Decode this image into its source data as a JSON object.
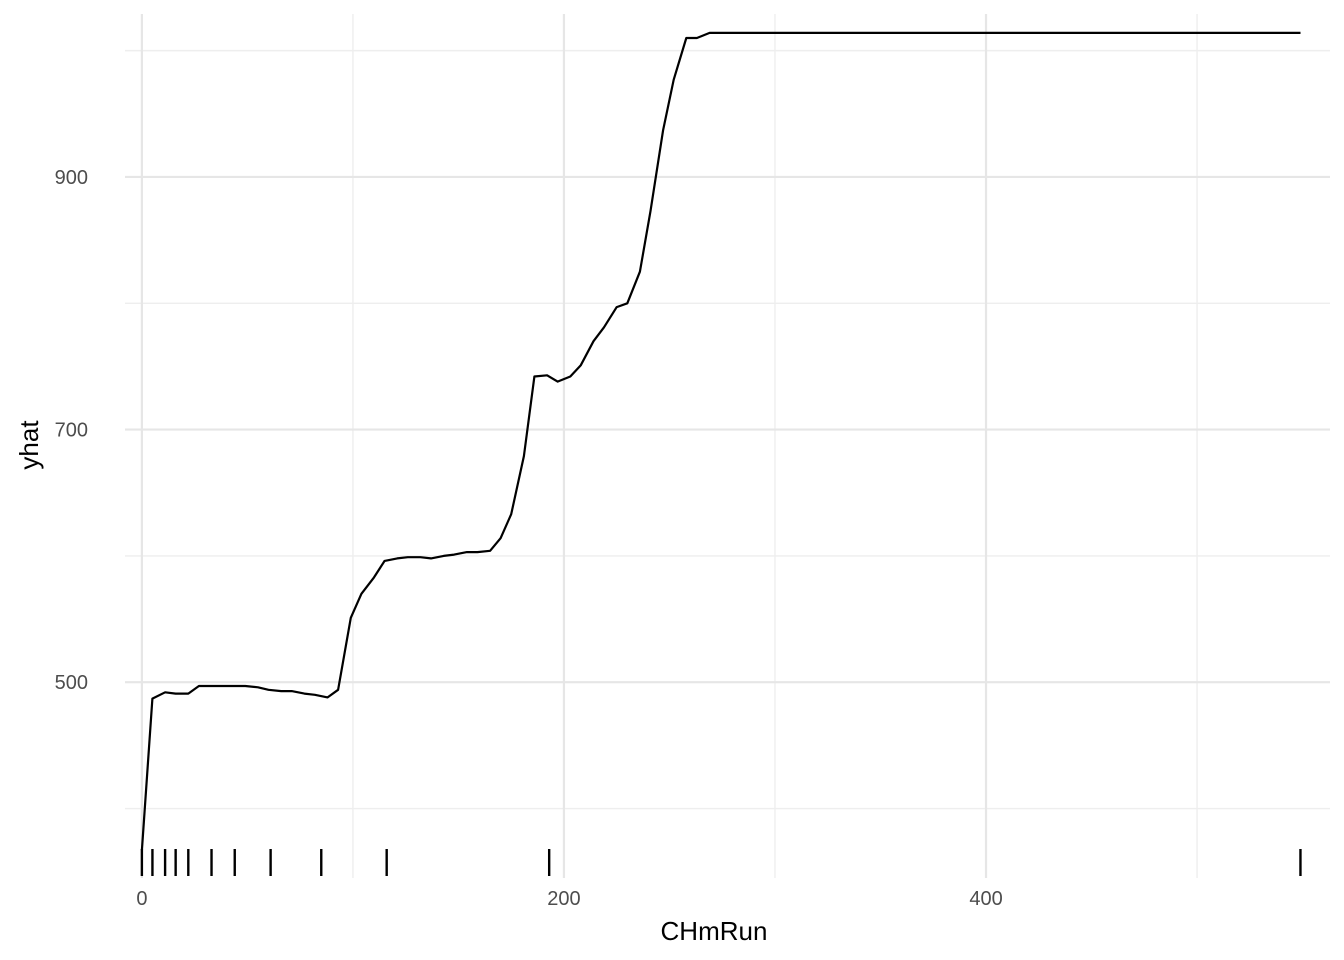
{
  "chart_data": {
    "type": "line",
    "title": "",
    "xlabel": "CHmRun",
    "ylabel": "yhat",
    "xlim": [
      -8,
      563
    ],
    "ylim": [
      345,
      1029
    ],
    "x_ticks": [
      0,
      200,
      400
    ],
    "x_minor_ticks": [
      100,
      300,
      500
    ],
    "y_ticks": [
      500,
      700,
      900
    ],
    "y_minor_ticks": [
      400,
      600,
      800,
      1000
    ],
    "grid": true,
    "series": [
      {
        "x": [
          0,
          5,
          11,
          16,
          22,
          27,
          33,
          38,
          44,
          49,
          55,
          60,
          66,
          71,
          77,
          82,
          88,
          93,
          99,
          104,
          110,
          115,
          121,
          126,
          132,
          137,
          143,
          148,
          154,
          159,
          165,
          170,
          175,
          181,
          186,
          192,
          197,
          203,
          208,
          214,
          219,
          225,
          230,
          236,
          241,
          247,
          252,
          258,
          263,
          269,
          274,
          280,
          300,
          400,
          500,
          549
        ],
        "y": [
          367,
          487,
          492,
          491,
          491,
          497,
          497,
          497,
          497,
          497,
          496,
          494,
          493,
          493,
          491,
          490,
          488,
          494,
          551,
          570,
          583,
          596,
          598,
          599,
          599,
          598,
          600,
          601,
          603,
          603,
          604,
          614,
          633,
          679,
          742,
          743,
          738,
          742,
          751,
          770,
          781,
          797,
          800,
          825,
          873,
          937,
          977,
          1010,
          1010,
          1014,
          1014,
          1014,
          1014,
          1014,
          1014,
          1014
        ]
      }
    ],
    "rug_x": [
      0,
      5,
      11,
      16,
      22,
      33,
      44,
      61,
      85,
      116,
      193,
      549
    ]
  }
}
